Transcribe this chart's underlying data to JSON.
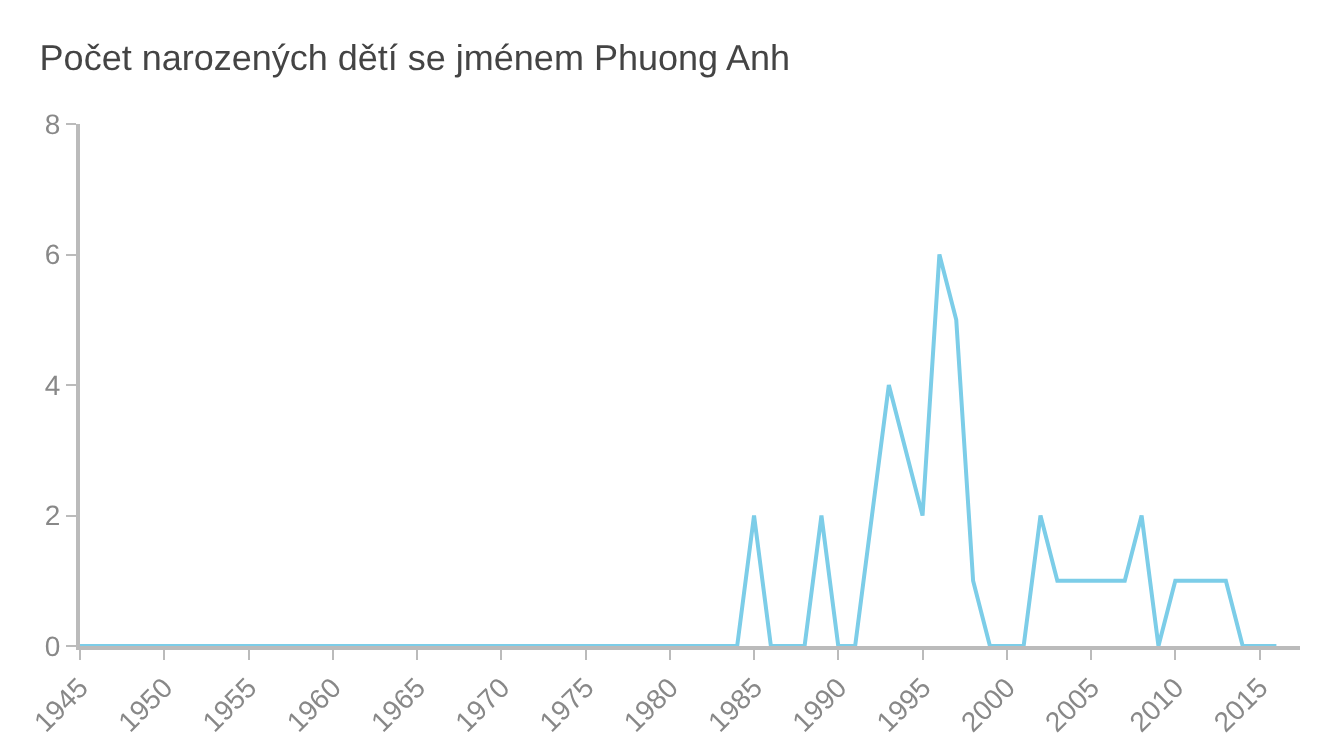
{
  "chart_data": {
    "type": "line",
    "title": "Počet narozených dětí se jménem Phuong Anh",
    "x": [
      1945,
      1946,
      1947,
      1948,
      1949,
      1950,
      1951,
      1952,
      1953,
      1954,
      1955,
      1956,
      1957,
      1958,
      1959,
      1960,
      1961,
      1962,
      1963,
      1964,
      1965,
      1966,
      1967,
      1968,
      1969,
      1970,
      1971,
      1972,
      1973,
      1974,
      1975,
      1976,
      1977,
      1978,
      1979,
      1980,
      1981,
      1982,
      1983,
      1984,
      1985,
      1986,
      1987,
      1988,
      1989,
      1990,
      1991,
      1992,
      1993,
      1994,
      1995,
      1996,
      1997,
      1998,
      1999,
      2000,
      2001,
      2002,
      2003,
      2004,
      2005,
      2006,
      2007,
      2008,
      2009,
      2010,
      2011,
      2012,
      2013,
      2014,
      2015,
      2016
    ],
    "series": [
      {
        "color": "#7ccde8",
        "values": [
          0,
          0,
          0,
          0,
          0,
          0,
          0,
          0,
          0,
          0,
          0,
          0,
          0,
          0,
          0,
          0,
          0,
          0,
          0,
          0,
          0,
          0,
          0,
          0,
          0,
          0,
          0,
          0,
          0,
          0,
          0,
          0,
          0,
          0,
          0,
          0,
          0,
          0,
          0,
          0,
          2,
          0,
          0,
          0,
          2,
          0,
          0,
          2,
          4,
          3,
          2,
          6,
          5,
          1,
          0,
          0,
          0,
          2,
          1,
          1,
          1,
          1,
          1,
          2,
          0,
          1,
          1,
          1,
          1,
          0,
          0,
          0
        ]
      }
    ],
    "xlim": [
      1945,
      2017.4
    ],
    "xticks": [
      1945,
      1950,
      1955,
      1960,
      1965,
      1970,
      1975,
      1980,
      1985,
      1990,
      1995,
      2000,
      2005,
      2010,
      2015
    ],
    "ylim": [
      0,
      8
    ],
    "yticks": [
      0,
      2,
      4,
      6,
      8
    ],
    "marker": "none",
    "line_style": "solid"
  }
}
